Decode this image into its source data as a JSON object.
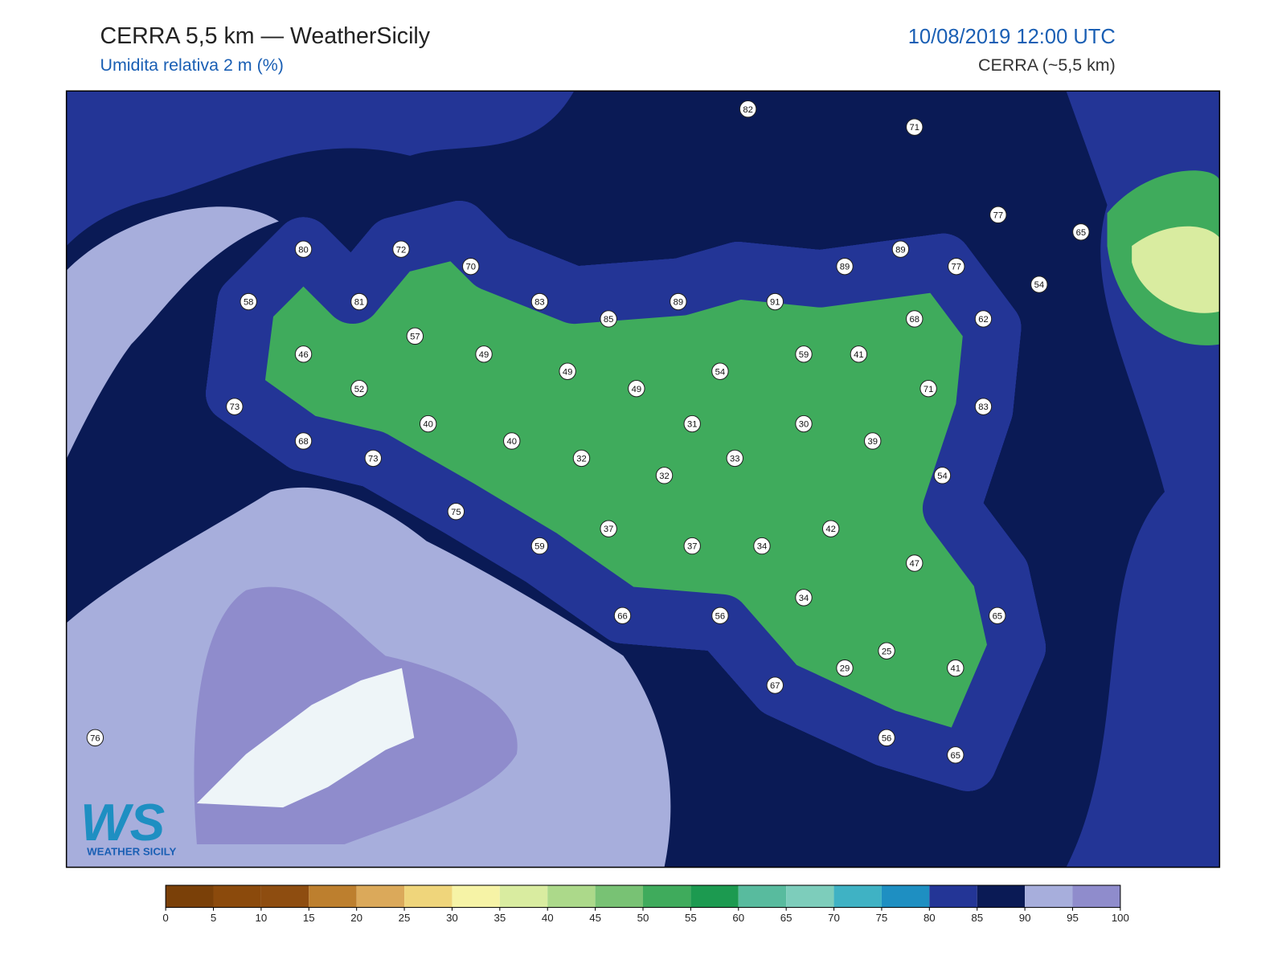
{
  "header": {
    "title": "CERRA 5,5 km — WeatherSicily",
    "subtitle": "Umidita relativa 2 m (%)",
    "date": "10/08/2019 12:00 UTC",
    "model": "CERRA (~5,5 km)"
  },
  "stations": [
    82,
    71,
    77,
    65,
    89,
    89,
    77,
    80,
    72,
    70,
    58,
    81,
    83,
    85,
    89,
    91,
    54,
    68,
    62,
    57,
    46,
    49,
    49,
    49,
    54,
    59,
    41,
    71,
    83,
    52,
    73,
    40,
    31,
    30,
    39,
    68,
    73,
    40,
    32,
    32,
    33,
    54,
    75,
    37,
    42,
    59,
    37,
    34,
    47,
    34,
    66,
    56,
    65,
    25,
    29,
    41,
    67,
    56,
    65,
    76
  ],
  "colorbar": {
    "ticks": [
      0,
      5,
      10,
      15,
      20,
      25,
      30,
      35,
      40,
      45,
      50,
      55,
      60,
      65,
      70,
      75,
      80,
      85,
      90,
      95,
      100
    ],
    "colors": [
      "#7a4008",
      "#8b4a0c",
      "#8e4d10",
      "#bd7f2e",
      "#dba95a",
      "#efd57b",
      "#f6f3a6",
      "#d9eca0",
      "#acd98a",
      "#78c274",
      "#3fab5c",
      "#1c9a50",
      "#58bb9e",
      "#7dcdbb",
      "#3fb2c4",
      "#1e8fc2",
      "#233596",
      "#0a1a55",
      "#a7aedc",
      "#8f8ccc"
    ]
  },
  "logo": {
    "mark": "WS",
    "text": "WEATHER SICILY"
  }
}
